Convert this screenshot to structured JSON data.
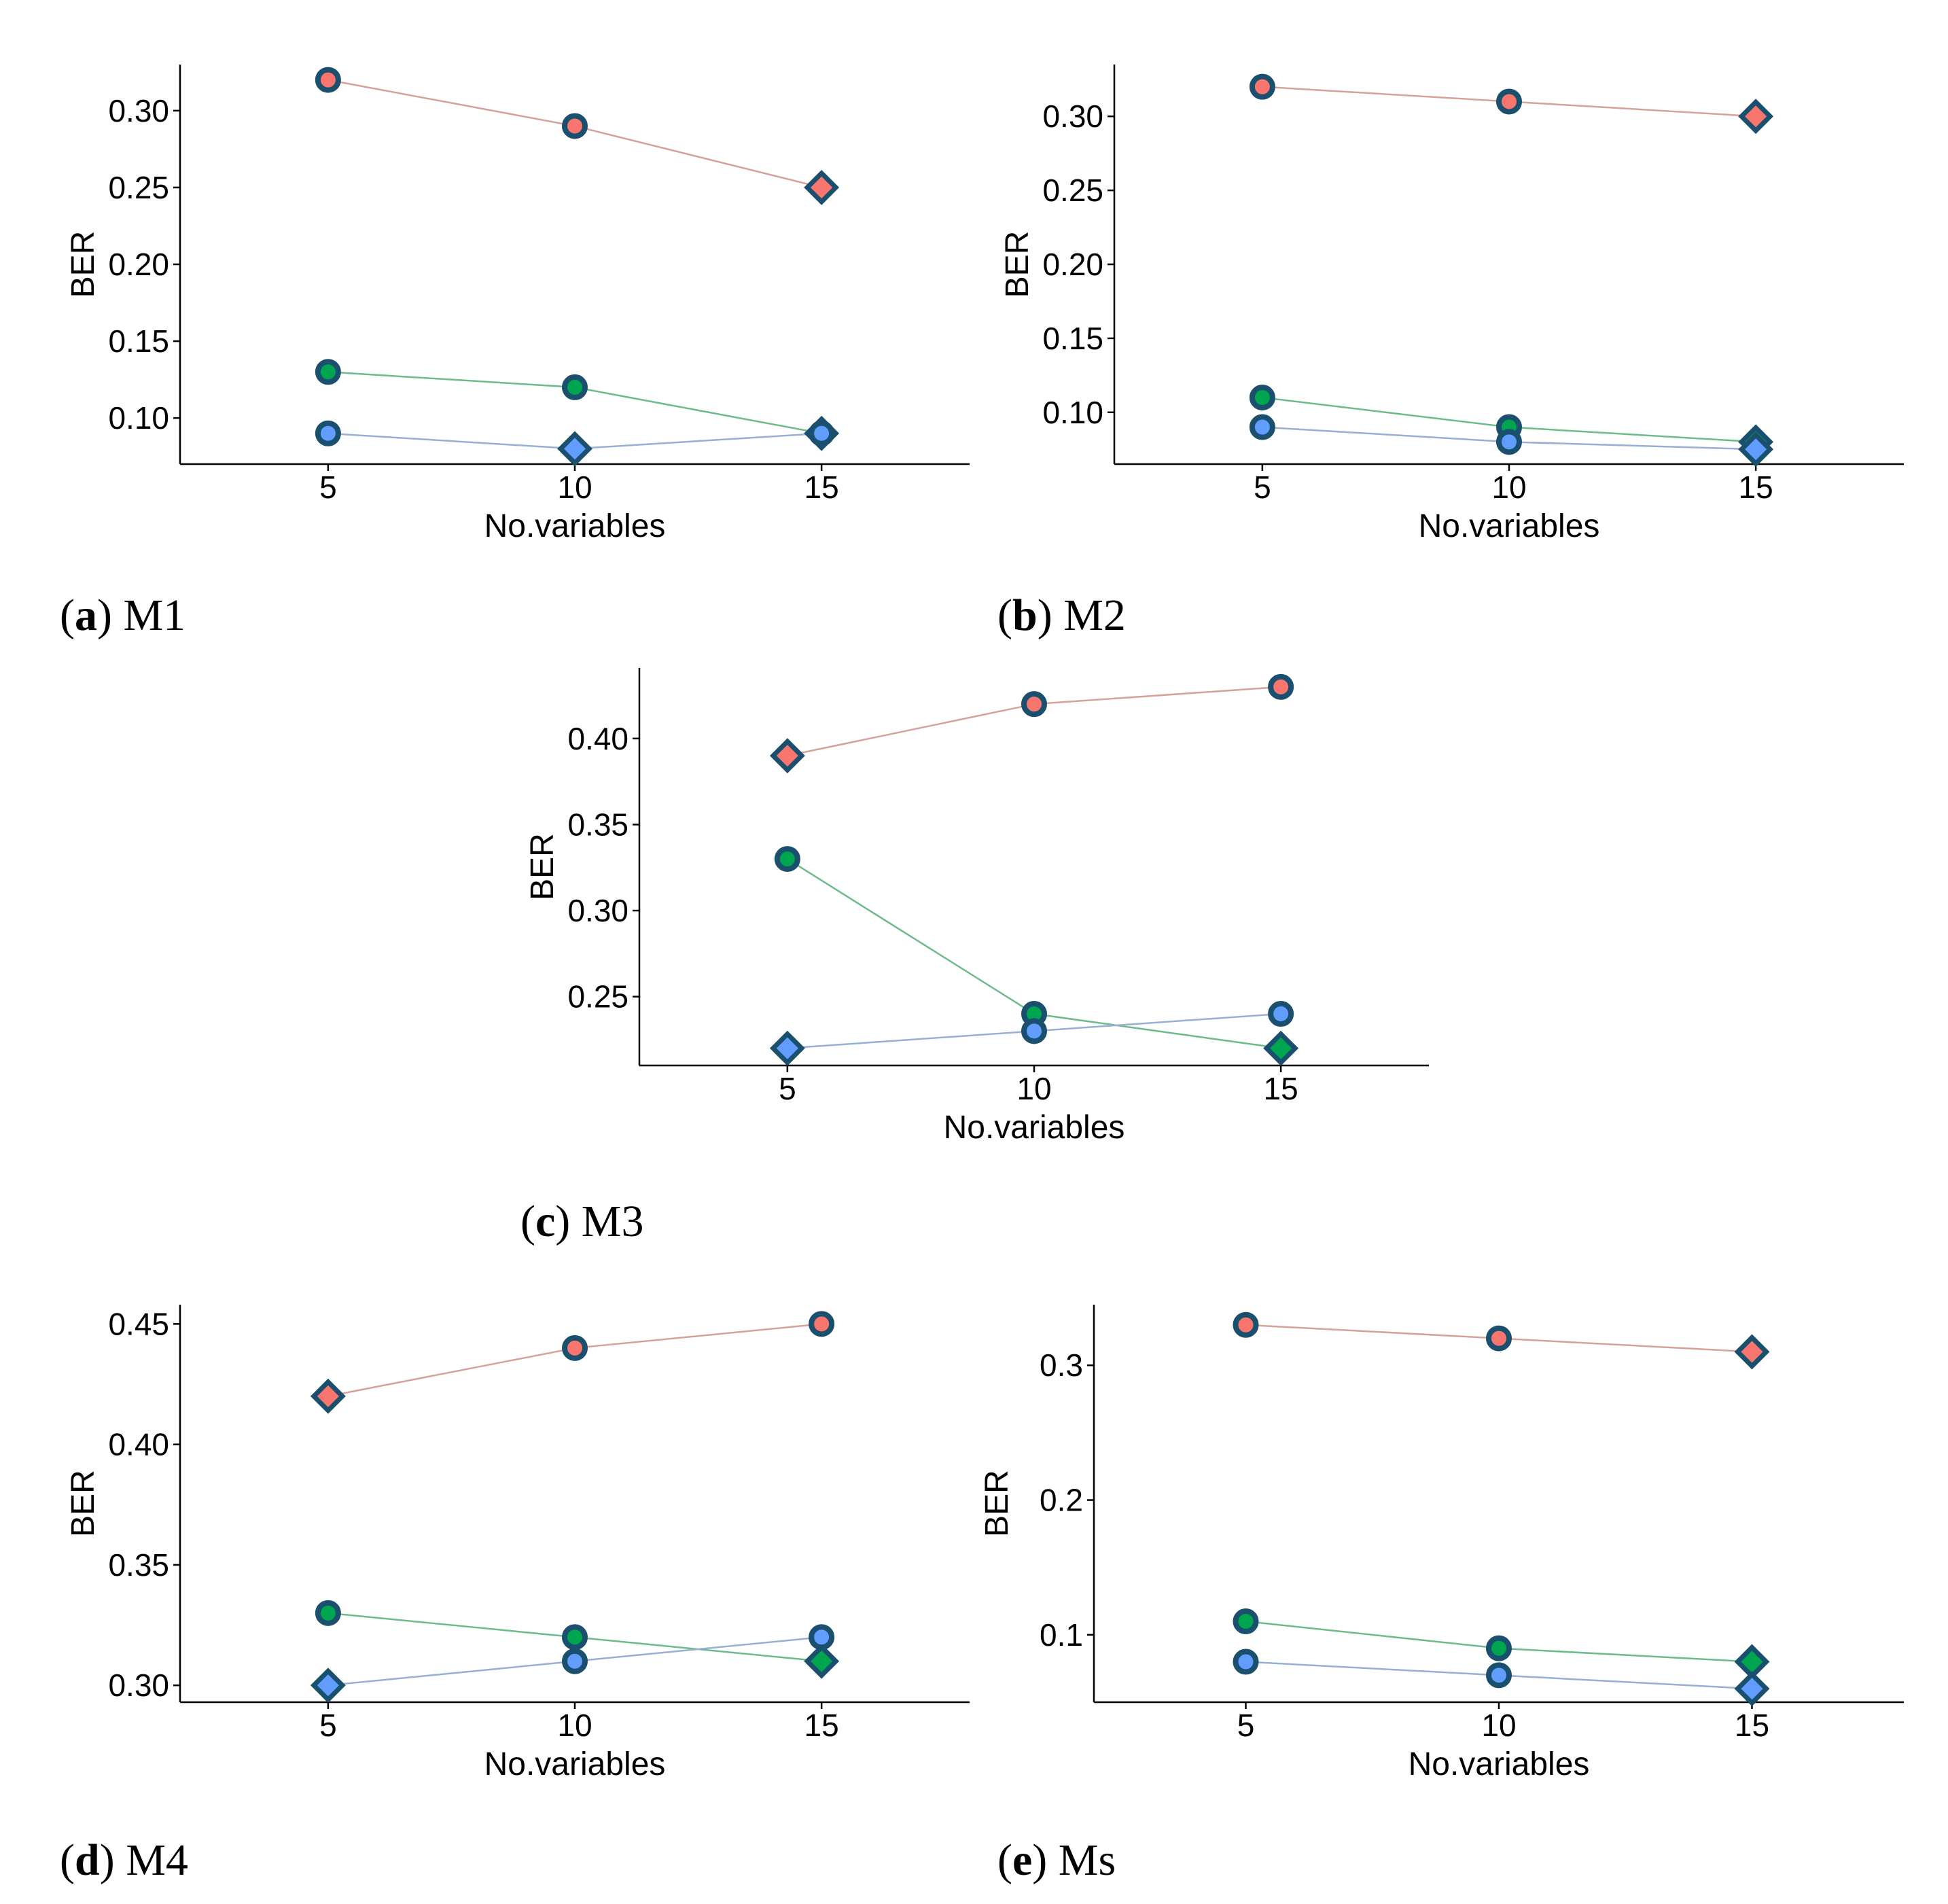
{
  "colors": {
    "series_red": "#f8766d",
    "series_green": "#00a64f",
    "series_blue": "#619cff",
    "marker_outline": "#1a4f6e",
    "line_red": "#d4a29c",
    "line_green": "#6dba8c",
    "line_blue": "#98afd2"
  },
  "chart_data": [
    {
      "type": "line",
      "caption_letter": "a",
      "caption_text": "M1",
      "xlabel": "No.variables",
      "ylabel": "BER",
      "x": [
        5,
        10,
        15
      ],
      "xticks": [
        "5",
        "10",
        "15"
      ],
      "xlim": [
        2,
        18
      ],
      "ylim": [
        0.07,
        0.33
      ],
      "yticks": [
        "0.10",
        "0.15",
        "0.20",
        "0.25",
        "0.30"
      ],
      "series": [
        {
          "name": "red",
          "values": [
            0.32,
            0.29,
            0.25
          ],
          "markers": [
            "circle",
            "circle",
            "diamond"
          ]
        },
        {
          "name": "green",
          "values": [
            0.13,
            0.12,
            0.09
          ],
          "markers": [
            "circle",
            "circle",
            "diamond"
          ]
        },
        {
          "name": "blue",
          "values": [
            0.09,
            0.08,
            0.09
          ],
          "markers": [
            "circle",
            "diamond",
            "circle"
          ]
        }
      ]
    },
    {
      "type": "line",
      "caption_letter": "b",
      "caption_text": "M2",
      "xlabel": "No.variables",
      "ylabel": "BER",
      "x": [
        5,
        10,
        15
      ],
      "xticks": [
        "5",
        "10",
        "15"
      ],
      "xlim": [
        2,
        18
      ],
      "ylim": [
        0.065,
        0.335
      ],
      "yticks": [
        "0.10",
        "0.15",
        "0.20",
        "0.25",
        "0.30"
      ],
      "series": [
        {
          "name": "red",
          "values": [
            0.32,
            0.31,
            0.3
          ],
          "markers": [
            "circle",
            "circle",
            "diamond"
          ]
        },
        {
          "name": "green",
          "values": [
            0.11,
            0.09,
            0.08
          ],
          "markers": [
            "circle",
            "circle",
            "diamond"
          ]
        },
        {
          "name": "blue",
          "values": [
            0.09,
            0.08,
            0.075
          ],
          "markers": [
            "circle",
            "circle",
            "diamond"
          ]
        }
      ]
    },
    {
      "type": "line",
      "caption_letter": "c",
      "caption_text": "M3",
      "xlabel": "No.variables",
      "ylabel": "BER",
      "x": [
        5,
        10,
        15
      ],
      "xticks": [
        "5",
        "10",
        "15"
      ],
      "xlim": [
        2,
        18
      ],
      "ylim": [
        0.21,
        0.441
      ],
      "yticks": [
        "0.25",
        "0.30",
        "0.35",
        "0.40"
      ],
      "series": [
        {
          "name": "red",
          "values": [
            0.39,
            0.42,
            0.43
          ],
          "markers": [
            "diamond",
            "circle",
            "circle"
          ]
        },
        {
          "name": "green",
          "values": [
            0.33,
            0.24,
            0.22
          ],
          "markers": [
            "circle",
            "circle",
            "diamond"
          ]
        },
        {
          "name": "blue",
          "values": [
            0.22,
            0.23,
            0.24
          ],
          "markers": [
            "diamond",
            "circle",
            "circle"
          ]
        }
      ]
    },
    {
      "type": "line",
      "caption_letter": "d",
      "caption_text": "M4",
      "xlabel": "No.variables",
      "ylabel": "BER",
      "x": [
        5,
        10,
        15
      ],
      "xticks": [
        "5",
        "10",
        "15"
      ],
      "xlim": [
        2,
        18
      ],
      "ylim": [
        0.293,
        0.458
      ],
      "yticks": [
        "0.30",
        "0.35",
        "0.40",
        "0.45"
      ],
      "series": [
        {
          "name": "red",
          "values": [
            0.42,
            0.44,
            0.45
          ],
          "markers": [
            "diamond",
            "circle",
            "circle"
          ]
        },
        {
          "name": "green",
          "values": [
            0.33,
            0.32,
            0.31
          ],
          "markers": [
            "circle",
            "circle",
            "diamond"
          ]
        },
        {
          "name": "blue",
          "values": [
            0.3,
            0.31,
            0.32
          ],
          "markers": [
            "diamond",
            "circle",
            "circle"
          ]
        }
      ]
    },
    {
      "type": "line",
      "caption_letter": "e",
      "caption_text": "Ms",
      "xlabel": "No.variables",
      "ylabel": "BER",
      "x": [
        5,
        10,
        15
      ],
      "xticks": [
        "5",
        "10",
        "15"
      ],
      "xlim": [
        2,
        18
      ],
      "ylim": [
        0.05,
        0.345
      ],
      "yticks": [
        "0.1",
        "0.2",
        "0.3"
      ],
      "series": [
        {
          "name": "red",
          "values": [
            0.33,
            0.32,
            0.31
          ],
          "markers": [
            "circle",
            "circle",
            "diamond"
          ]
        },
        {
          "name": "green",
          "values": [
            0.11,
            0.09,
            0.08
          ],
          "markers": [
            "circle",
            "circle",
            "diamond"
          ]
        },
        {
          "name": "blue",
          "values": [
            0.08,
            0.07,
            0.06
          ],
          "markers": [
            "circle",
            "circle",
            "diamond"
          ]
        }
      ]
    }
  ]
}
